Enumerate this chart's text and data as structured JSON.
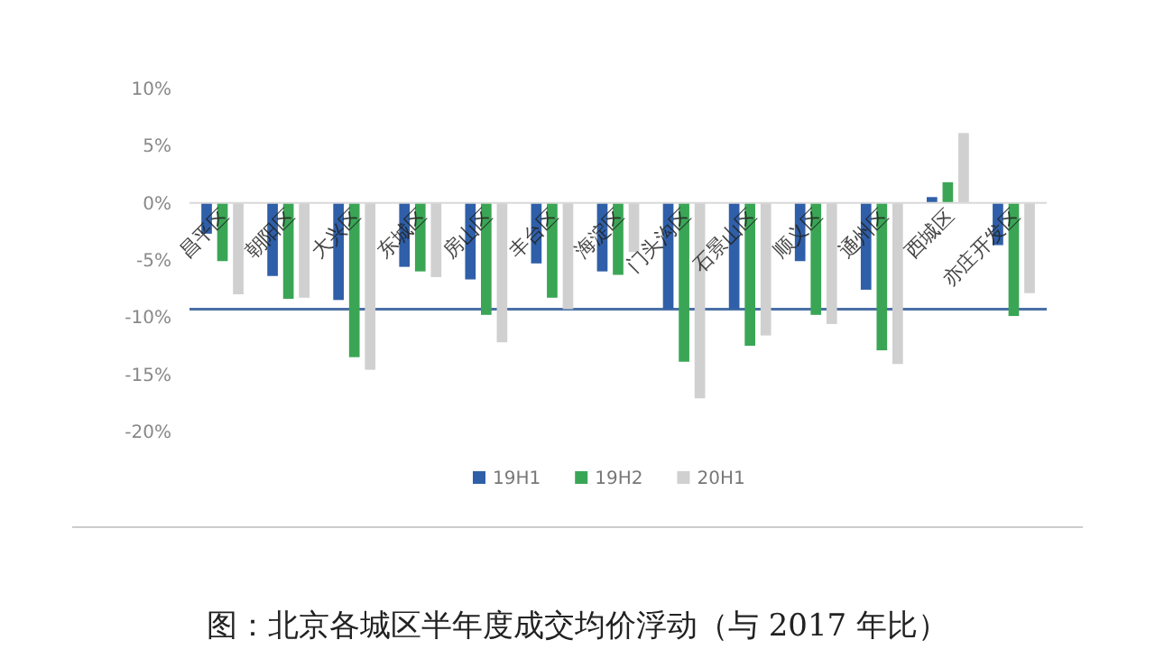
{
  "chart_data": {
    "type": "bar",
    "title": "图：北京各城区半年度成交均价浮动（与 2017 年比）",
    "categories": [
      "昌平区",
      "朝阳区",
      "大兴区",
      "东城区",
      "房山区",
      "丰台区",
      "海淀区",
      "门头沟区",
      "石景山区",
      "顺义区",
      "通州区",
      "西城区",
      "亦庄开发区"
    ],
    "series": [
      {
        "name": "19H1",
        "color": "#2f5fa8",
        "values": [
          -2.7,
          -6.4,
          -8.5,
          -5.6,
          -6.7,
          -5.3,
          -6.0,
          -9.3,
          -9.3,
          -5.1,
          -7.6,
          0.5,
          -3.7
        ]
      },
      {
        "name": "19H2",
        "color": "#3aa655",
        "values": [
          -5.1,
          -8.4,
          -13.5,
          -6.0,
          -9.8,
          -8.3,
          -6.3,
          -13.9,
          -12.5,
          -9.8,
          -12.9,
          1.8,
          -9.9
        ]
      },
      {
        "name": "20H1",
        "color": "#d0d0d0",
        "values": [
          -8.0,
          -8.3,
          -14.6,
          -6.5,
          -12.2,
          -9.3,
          -4.3,
          -17.1,
          -11.6,
          -10.6,
          -14.1,
          6.1,
          -7.9
        ]
      }
    ],
    "ylim": [
      -20,
      10
    ],
    "yticks": [
      {
        "value": 10,
        "label": "10%"
      },
      {
        "value": 5,
        "label": "5%"
      },
      {
        "value": 0,
        "label": "0%"
      },
      {
        "value": -5,
        "label": "-5%"
      },
      {
        "value": -10,
        "label": "-10%"
      },
      {
        "value": -15,
        "label": "-15%"
      },
      {
        "value": -20,
        "label": "-20%"
      }
    ],
    "ref_lines": [
      {
        "axis": "y",
        "value": -9.3,
        "color": "#4a6fa5"
      }
    ],
    "legend": "bottom"
  }
}
